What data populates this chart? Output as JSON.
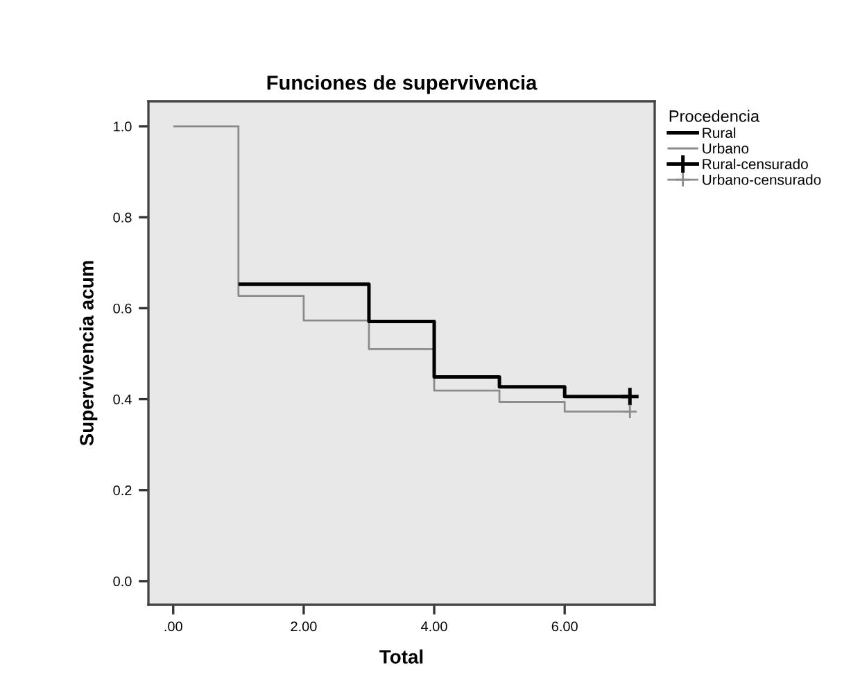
{
  "chart_data": {
    "type": "step",
    "title": "Funciones de supervivencia",
    "xlabel": "Total",
    "ylabel": "Supervivencia acum",
    "legend_title": "Procedencia",
    "legend": "top right",
    "xlim": [
      -0.38,
      7.38
    ],
    "ylim": [
      -0.052,
      1.055
    ],
    "xticks": [
      {
        "value": 0,
        "label": ".00"
      },
      {
        "value": 2,
        "label": "2.00"
      },
      {
        "value": 4,
        "label": "4.00"
      },
      {
        "value": 6,
        "label": "6.00"
      }
    ],
    "yticks": [
      {
        "value": 0,
        "label": "0.0"
      },
      {
        "value": 0.2,
        "label": "0.2"
      },
      {
        "value": 0.4,
        "label": "0.4"
      },
      {
        "value": 0.6,
        "label": "0.6"
      },
      {
        "value": 0.8,
        "label": "0.8"
      },
      {
        "value": 1.0,
        "label": "1.0"
      }
    ],
    "series": [
      {
        "name": "Rural",
        "color": "#000000",
        "x": [
          1,
          3,
          4,
          5,
          6,
          7
        ],
        "values": [
          0.653,
          0.571,
          0.449,
          0.427,
          0.406,
          0.406
        ]
      },
      {
        "name": "Urbano",
        "color": "#8c8c8c",
        "x": [
          0,
          1,
          2,
          3,
          4,
          5,
          6,
          7
        ],
        "values": [
          1.0,
          0.627,
          0.573,
          0.51,
          0.419,
          0.394,
          0.373,
          0.373
        ]
      },
      {
        "name": "Rural-censurado",
        "type": "scatter",
        "marker": "cross",
        "color": "#000000",
        "x": [
          7
        ],
        "values": [
          0.406
        ]
      },
      {
        "name": "Urbano-censurado",
        "type": "scatter",
        "marker": "cross",
        "color": "#8c8c8c",
        "x": [
          7
        ],
        "values": [
          0.373
        ]
      }
    ]
  }
}
